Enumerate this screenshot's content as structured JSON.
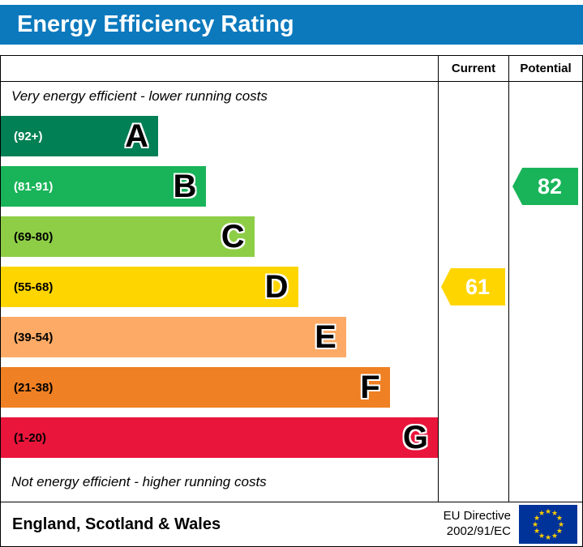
{
  "title_bar": {
    "title": "Energy Efficiency Rating",
    "bg": "#0c79bd"
  },
  "columns": {
    "current": "Current",
    "potential": "Potential"
  },
  "notes": {
    "top": "Very energy efficient - lower running costs",
    "bottom": "Not energy efficient - higher running costs"
  },
  "chart_data": {
    "type": "bar",
    "title": "Energy Efficiency Rating",
    "categories": [
      "A",
      "B",
      "C",
      "D",
      "E",
      "F",
      "G"
    ],
    "bands": [
      {
        "letter": "A",
        "range": "(92+)",
        "color": "#008054",
        "range_color": "#ffffff",
        "width_pct": 36
      },
      {
        "letter": "B",
        "range": "(81-91)",
        "color": "#19b459",
        "range_color": "#ffffff",
        "width_pct": 47
      },
      {
        "letter": "C",
        "range": "(69-80)",
        "color": "#8dce46",
        "range_color": "#000000",
        "width_pct": 58
      },
      {
        "letter": "D",
        "range": "(55-68)",
        "color": "#ffd500",
        "range_color": "#000000",
        "width_pct": 68
      },
      {
        "letter": "E",
        "range": "(39-54)",
        "color": "#fcaa65",
        "range_color": "#000000",
        "width_pct": 79
      },
      {
        "letter": "F",
        "range": "(21-38)",
        "color": "#ef8023",
        "range_color": "#000000",
        "width_pct": 89
      },
      {
        "letter": "G",
        "range": "(1-20)",
        "color": "#e9153b",
        "range_color": "#000000",
        "width_pct": 100
      }
    ],
    "markers": {
      "current": {
        "value": "61",
        "band_index": 3,
        "color": "#ffd500"
      },
      "potential": {
        "value": "82",
        "band_index": 1,
        "color": "#19b459"
      }
    },
    "legend_position": "none",
    "grid": false
  },
  "footer": {
    "region": "England, Scotland & Wales",
    "directive_line1": "EU Directive",
    "directive_line2": "2002/91/EC",
    "flag_blue": "#003399",
    "flag_star": "#ffcc00"
  }
}
